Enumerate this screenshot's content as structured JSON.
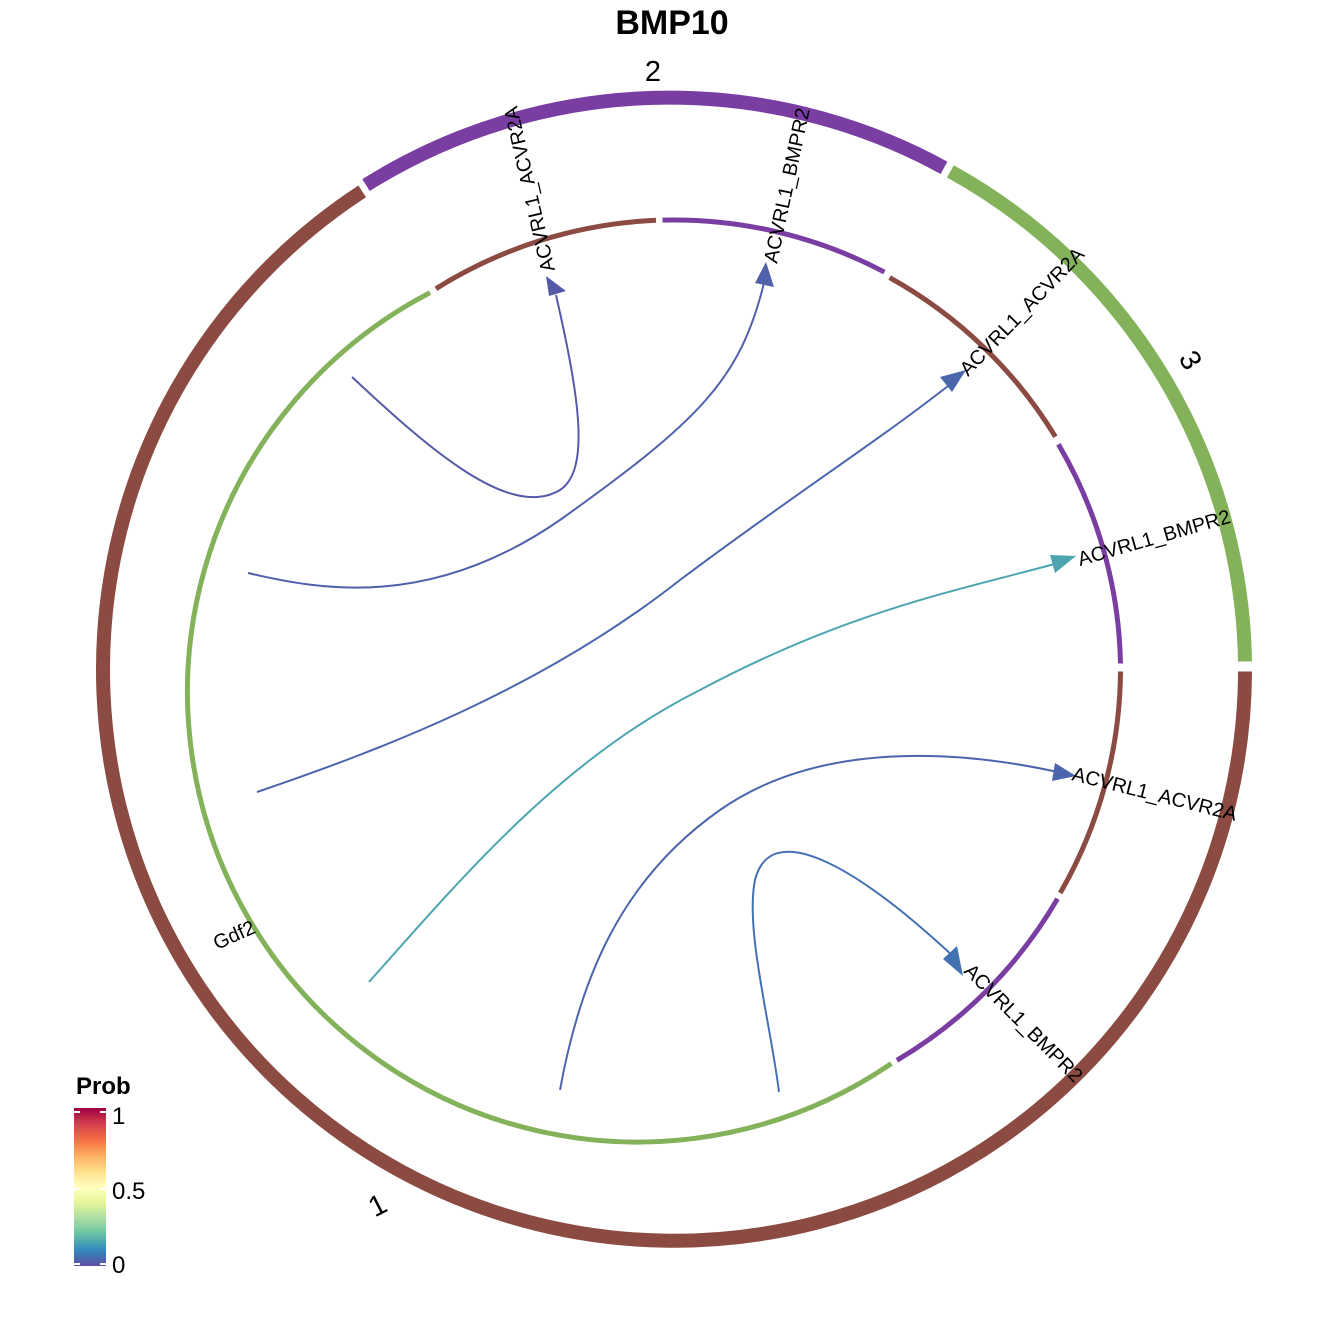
{
  "title": "BMP10",
  "colors": {
    "group_1": "#8B4A42",
    "group_2": "#7A3EA3",
    "group_3": "#83B25A",
    "ring_sender": "#83B25A",
    "ring_receiver_acvr2a": "#8B4A42",
    "ring_receiver_bmpr2": "#7A3EA3"
  },
  "groups": [
    {
      "label": "1"
    },
    {
      "label": "2"
    },
    {
      "label": "3"
    }
  ],
  "sectors": {
    "sender": {
      "label": "Gdf2"
    },
    "receivers": [
      {
        "label": "ACVRL1_ACVR2A"
      },
      {
        "label": "ACVRL1_BMPR2"
      },
      {
        "label": "ACVRL1_ACVR2A"
      },
      {
        "label": "ACVRL1_BMPR2"
      },
      {
        "label": "ACVRL1_ACVR2A"
      },
      {
        "label": "ACVRL1_BMPR2"
      }
    ]
  },
  "chart_data": {
    "type": "chord",
    "title": "BMP10",
    "links": [
      {
        "from": "Gdf2",
        "to": "ACVRL1_ACVR2A",
        "target_group": "2",
        "prob": 0.02
      },
      {
        "from": "Gdf2",
        "to": "ACVRL1_BMPR2",
        "target_group": "2",
        "prob": 0.03
      },
      {
        "from": "Gdf2",
        "to": "ACVRL1_ACVR2A",
        "target_group": "3",
        "prob": 0.04
      },
      {
        "from": "Gdf2",
        "to": "ACVRL1_BMPR2",
        "target_group": "3",
        "prob": 0.15
      },
      {
        "from": "Gdf2",
        "to": "ACVRL1_ACVR2A",
        "target_group": "1",
        "prob": 0.04
      },
      {
        "from": "Gdf2",
        "to": "ACVRL1_BMPR2",
        "target_group": "1",
        "prob": 0.06
      }
    ]
  },
  "legend": {
    "title": "Prob",
    "ticks": [
      "1",
      "0.5",
      "0"
    ],
    "gradient": [
      "#5E4FA2",
      "#3288BD",
      "#66C2A5",
      "#ABDDA4",
      "#E6F598",
      "#FFFFBF",
      "#FEE08B",
      "#FDAE61",
      "#F46D43",
      "#D53E4F",
      "#9E0142"
    ]
  }
}
